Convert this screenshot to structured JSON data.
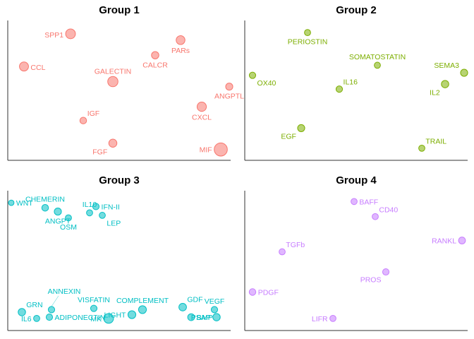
{
  "chart_data": [
    {
      "type": "scatter",
      "title": "Group 1",
      "color": "#f8766d",
      "points": [
        {
          "label": "SPP1",
          "x": 0.27,
          "y": 0.95,
          "size": 2.6,
          "label_side": "left",
          "label_dy": 1
        },
        {
          "label": "PARs",
          "x": 0.79,
          "y": 0.9,
          "size": 2.2,
          "label_side": "below",
          "label_dy": 0
        },
        {
          "label": "CALCR",
          "x": 0.67,
          "y": 0.78,
          "size": 1.6,
          "label_side": "below",
          "label_dy": 0
        },
        {
          "label": "CCL",
          "x": 0.05,
          "y": 0.69,
          "size": 2.3,
          "label_side": "right",
          "label_dy": 1
        },
        {
          "label": "GALECTIN",
          "x": 0.47,
          "y": 0.57,
          "size": 2.8,
          "label_side": "above",
          "label_dy": 0
        },
        {
          "label": "ANGPTL",
          "x": 1.02,
          "y": 0.53,
          "size": 1.5,
          "label_side": "below",
          "label_dy": 0
        },
        {
          "label": "CXCL",
          "x": 0.89,
          "y": 0.37,
          "size": 2.4,
          "label_side": "below",
          "label_dy": 0
        },
        {
          "label": "IGF",
          "x": 0.33,
          "y": 0.26,
          "size": 1.3,
          "label_side": "above-right",
          "label_dy": 0
        },
        {
          "label": "FGF",
          "x": 0.47,
          "y": 0.08,
          "size": 1.9,
          "label_side": "below-left",
          "label_dy": 0
        },
        {
          "label": "MIF",
          "x": 0.98,
          "y": 0.03,
          "size": 4.0,
          "label_side": "left",
          "label_dy": 0
        }
      ]
    },
    {
      "type": "scatter",
      "title": "Group 2",
      "color": "#7cae00",
      "points": [
        {
          "label": "PERIOSTIN",
          "x": 0.27,
          "y": 0.96,
          "size": 1.1,
          "label_side": "below",
          "label_dy": 0
        },
        {
          "label": "SOMATOSTATIN",
          "x": 0.6,
          "y": 0.7,
          "size": 1.1,
          "label_side": "above",
          "label_dy": 0
        },
        {
          "label": "SEMA3",
          "x": 1.01,
          "y": 0.64,
          "size": 1.5,
          "label_side": "left-above",
          "label_dy": 0
        },
        {
          "label": "OX40",
          "x": 0.01,
          "y": 0.62,
          "size": 1.2,
          "label_side": "below-right",
          "label_dy": 0
        },
        {
          "label": "IL2",
          "x": 0.92,
          "y": 0.55,
          "size": 1.6,
          "label_side": "below-left",
          "label_dy": 0
        },
        {
          "label": "IL16",
          "x": 0.42,
          "y": 0.51,
          "size": 1.2,
          "label_side": "above-right",
          "label_dy": 0
        },
        {
          "label": "EGF",
          "x": 0.24,
          "y": 0.2,
          "size": 1.5,
          "label_side": "below-left",
          "label_dy": 0
        },
        {
          "label": "TRAIL",
          "x": 0.81,
          "y": 0.04,
          "size": 1.1,
          "label_side": "above-right",
          "label_dy": 0
        }
      ]
    },
    {
      "type": "scatter",
      "title": "Group 3",
      "color": "#00bfc4",
      "points": [
        {
          "label": "WNT",
          "x": -0.01,
          "y": 0.96,
          "size": 0.8,
          "label_side": "right",
          "label_dy": 0
        },
        {
          "label": "CHEMERIN",
          "x": 0.15,
          "y": 0.92,
          "size": 1.3,
          "label_side": "above",
          "label_dy": 0
        },
        {
          "label": "ANGPT",
          "x": 0.21,
          "y": 0.89,
          "size": 1.5,
          "label_side": "below",
          "label_dy": 0
        },
        {
          "label": "IL10",
          "x": 0.36,
          "y": 0.88,
          "size": 1.1,
          "label_side": "above",
          "label_dy": 0
        },
        {
          "label": "IFN-II",
          "x": 0.39,
          "y": 0.93,
          "size": 1.2,
          "label_side": "right",
          "label_dy": 0
        },
        {
          "label": "OSM",
          "x": 0.26,
          "y": 0.84,
          "size": 1.1,
          "label_side": "below",
          "label_dy": 0
        },
        {
          "label": "LEP",
          "x": 0.42,
          "y": 0.86,
          "size": 1.1,
          "label_side": "below-right",
          "label_dy": 0
        },
        {
          "label": "ANNEXIN",
          "x": 0.18,
          "y": 0.11,
          "size": 1.2,
          "label_side": "above-far",
          "label_dy": 0
        },
        {
          "label": "GRN",
          "x": 0.04,
          "y": 0.09,
          "size": 1.6,
          "label_side": "above-right",
          "label_dy": 0
        },
        {
          "label": "IL6",
          "x": 0.11,
          "y": 0.04,
          "size": 1.1,
          "label_side": "left",
          "label_dy": 0
        },
        {
          "label": "ADIPONECTIN",
          "x": 0.17,
          "y": 0.05,
          "size": 1.2,
          "label_side": "right",
          "label_dy": 0
        },
        {
          "label": "VISFATIN",
          "x": 0.38,
          "y": 0.12,
          "size": 1.2,
          "label_side": "above",
          "label_dy": 0
        },
        {
          "label": "MK",
          "x": 0.45,
          "y": 0.04,
          "size": 2.6,
          "label_side": "left",
          "label_dy": 0
        },
        {
          "label": "LIGHT",
          "x": 0.56,
          "y": 0.07,
          "size": 1.8,
          "label_side": "left",
          "label_dy": 0
        },
        {
          "label": "COMPLEMENT",
          "x": 0.61,
          "y": 0.11,
          "size": 1.8,
          "label_side": "above",
          "label_dy": 0
        },
        {
          "label": "GDF",
          "x": 0.8,
          "y": 0.13,
          "size": 1.7,
          "label_side": "above-right",
          "label_dy": 0
        },
        {
          "label": "VEGF",
          "x": 0.95,
          "y": 0.11,
          "size": 1.2,
          "label_side": "above",
          "label_dy": 0
        },
        {
          "label": "BMP",
          "x": 0.84,
          "y": 0.05,
          "size": 1.4,
          "label_side": "right",
          "label_dy": 0
        },
        {
          "label": "PSAP",
          "x": 0.96,
          "y": 0.05,
          "size": 1.6,
          "label_side": "left",
          "label_dy": 0
        }
      ]
    },
    {
      "type": "scatter",
      "title": "Group 4",
      "color": "#c77cff",
      "points": [
        {
          "label": "BAFF",
          "x": 0.49,
          "y": 0.97,
          "size": 1.1,
          "label_side": "right",
          "label_dy": 0
        },
        {
          "label": "CD40",
          "x": 0.59,
          "y": 0.85,
          "size": 1.1,
          "label_side": "above-right",
          "label_dy": 0
        },
        {
          "label": "RANKL",
          "x": 1.0,
          "y": 0.66,
          "size": 1.4,
          "label_side": "left",
          "label_dy": 0
        },
        {
          "label": "TGFb",
          "x": 0.15,
          "y": 0.57,
          "size": 1.1,
          "label_side": "above-right",
          "label_dy": 0
        },
        {
          "label": "PROS",
          "x": 0.64,
          "y": 0.41,
          "size": 1.2,
          "label_side": "below-left",
          "label_dy": 0
        },
        {
          "label": "PDGF",
          "x": 0.01,
          "y": 0.25,
          "size": 1.3,
          "label_side": "right",
          "label_dy": 0
        },
        {
          "label": "LIFR",
          "x": 0.39,
          "y": 0.04,
          "size": 1.1,
          "label_side": "left",
          "label_dy": 0
        }
      ]
    }
  ]
}
